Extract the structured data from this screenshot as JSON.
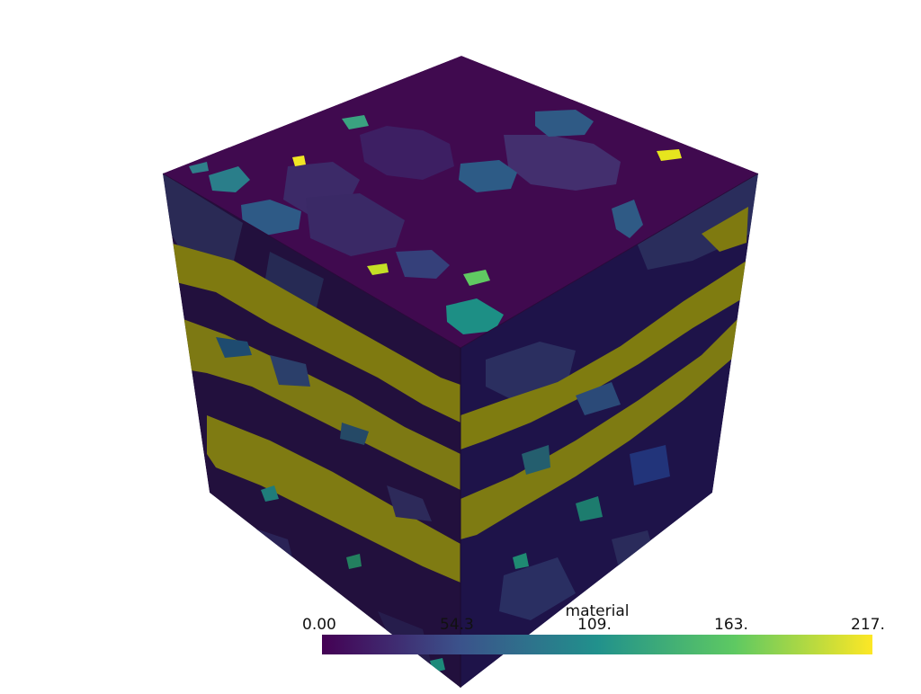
{
  "scene": {
    "object": "voxel-cube",
    "scalar": "material",
    "colormap": "viridis",
    "background": "#ffffff"
  },
  "scalar_bar": {
    "title": "material",
    "ticks": [
      "0.00",
      "54.3",
      "109.",
      "163.",
      "217."
    ],
    "range": [
      0,
      217
    ],
    "colormap_stops": [
      "#440154",
      "#3b528b",
      "#21918c",
      "#5ec962",
      "#fde725"
    ]
  }
}
